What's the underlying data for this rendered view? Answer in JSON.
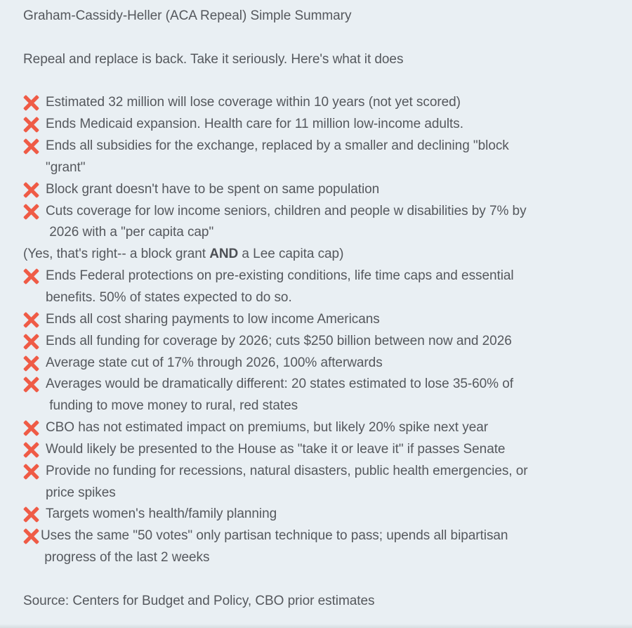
{
  "theme": {
    "background_color": "#e9eff3",
    "text_color": "#55585d",
    "cross_color": "#ef5b46"
  },
  "note": {
    "title": "Graham-Cassidy-Heller (ACA Repeal) Simple Summary",
    "intro": "Repeal and replace is back. Take it seriously. Here's what it does",
    "items": [
      {
        "icon": "cross-mark",
        "segments": [
          {
            "t": "Estimated 32 million will lose coverage within 10 years (not yet scored)"
          }
        ]
      },
      {
        "icon": "cross-mark",
        "segments": [
          {
            "t": "Ends Medicaid expansion. Health care for 11 million low-income adults."
          }
        ]
      },
      {
        "icon": "cross-mark",
        "segments": [
          {
            "t": "Ends all subsidies for the exchange, replaced by a smaller and declining \"block\n\"grant\""
          }
        ]
      },
      {
        "icon": "cross-mark",
        "segments": [
          {
            "t": "Block grant doesn't have to be spent on same population"
          }
        ]
      },
      {
        "icon": "cross-mark",
        "segments": [
          {
            "t": "Cuts coverage for low income seniors, children and people w disabilities by 7% by\n 2026 with a \"per capita cap\""
          }
        ]
      },
      {
        "icon": null,
        "segments": [
          {
            "t": "(Yes, that's right-- a block grant "
          },
          {
            "t": "AND",
            "bold": true
          },
          {
            "t": " a Lee capita cap)"
          }
        ]
      },
      {
        "icon": "cross-mark",
        "segments": [
          {
            "t": "Ends Federal protections on pre-existing conditions, life time caps and essential\nbenefits. 50% of states expected to do so."
          }
        ]
      },
      {
        "icon": "cross-mark",
        "segments": [
          {
            "t": "Ends all cost sharing payments to low income Americans"
          }
        ]
      },
      {
        "icon": "cross-mark",
        "segments": [
          {
            "t": "Ends all funding for coverage by 2026; cuts $250 billion between now and 2026"
          }
        ]
      },
      {
        "icon": "cross-mark",
        "segments": [
          {
            "t": "Average state cut of 17% through 2026, 100% afterwards"
          }
        ]
      },
      {
        "icon": "cross-mark",
        "segments": [
          {
            "t": "Averages would be dramatically different: 20 states estimated to lose 35-60% of\n funding to move money to rural, red states"
          }
        ]
      },
      {
        "icon": "cross-mark",
        "segments": [
          {
            "t": "CBO has not estimated impact on premiums, but likely 20% spike next year"
          }
        ]
      },
      {
        "icon": "cross-mark",
        "segments": [
          {
            "t": "Would likely be presented to the House as \"take it or leave it\" if passes Senate"
          }
        ]
      },
      {
        "icon": "cross-mark",
        "segments": [
          {
            "t": "Provide no funding for recessions, natural disasters, public health emergencies, or\nprice spikes"
          }
        ]
      },
      {
        "icon": "cross-mark",
        "segments": [
          {
            "t": "Targets women's health/family planning"
          }
        ]
      },
      {
        "icon": "cross-mark",
        "tight": true,
        "segments": [
          {
            "t": "Uses the same \"50 votes\" only partisan technique to pass; upends all bipartisan\n progress of the last 2 weeks"
          }
        ]
      }
    ],
    "source": "Source: Centers for Budget and Policy, CBO prior estimates"
  }
}
